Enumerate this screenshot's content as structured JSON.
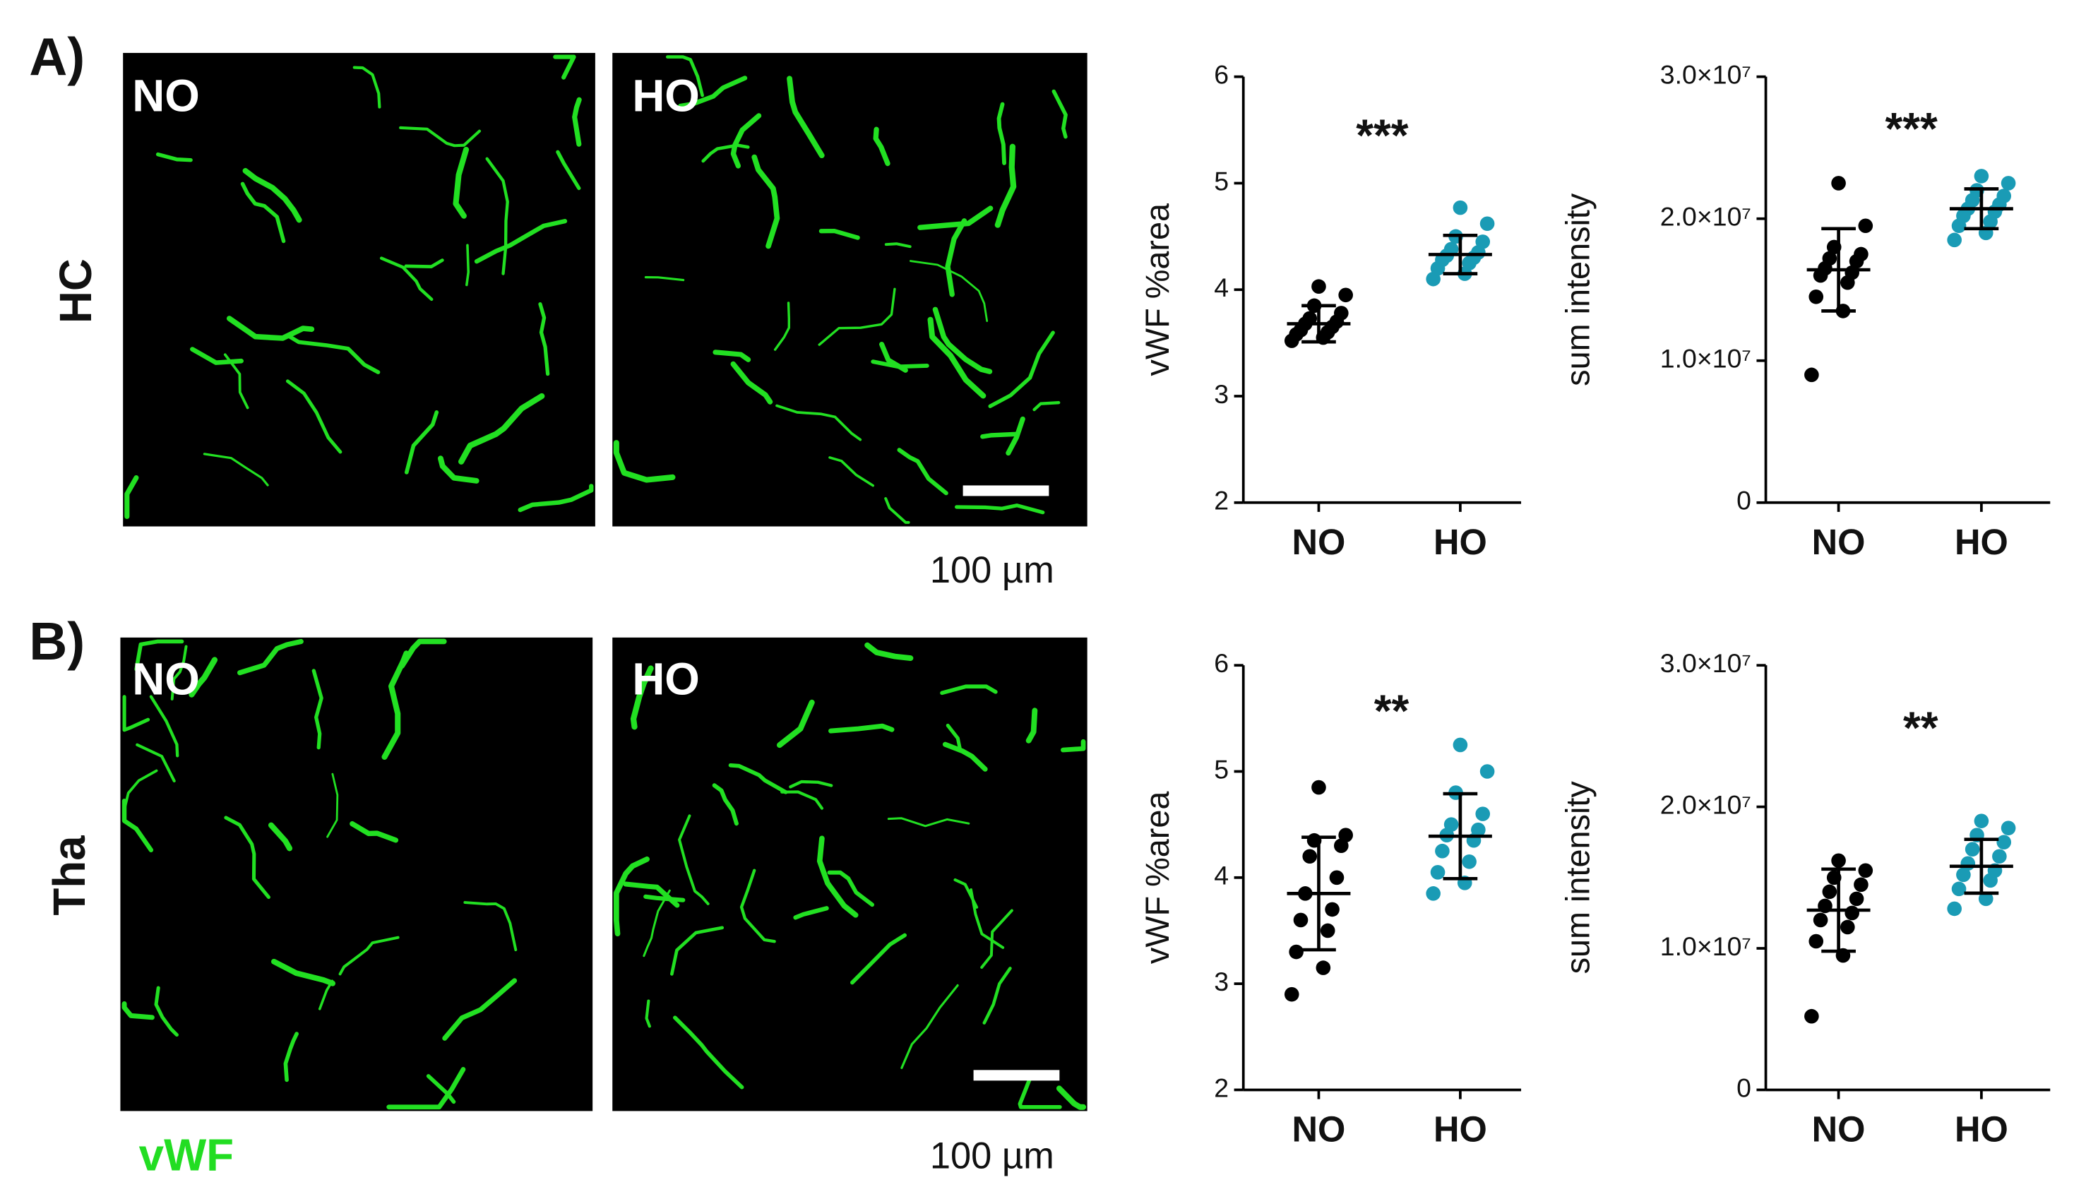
{
  "panels": [
    {
      "label": "A)",
      "region": "HC",
      "images": [
        "NO",
        "HO"
      ],
      "scale_bar": "100 µm"
    },
    {
      "label": "B)",
      "region": "Tha",
      "images": [
        "NO",
        "HO"
      ],
      "scale_bar": "100 µm"
    }
  ],
  "stain": "vWF",
  "chart_data": [
    {
      "type": "dot",
      "ylabel": "vWF %area",
      "annotation": "***",
      "categories": [
        "NO",
        "HO"
      ],
      "colors": [
        "#000000",
        "#1a9bb5"
      ],
      "values": [
        [
          3.52,
          3.55,
          3.58,
          3.6,
          3.62,
          3.65,
          3.68,
          3.7,
          3.73,
          3.78,
          3.85,
          3.95,
          4.03
        ],
        [
          4.1,
          4.15,
          4.2,
          4.25,
          4.28,
          4.3,
          4.32,
          4.35,
          4.38,
          4.45,
          4.5,
          4.62,
          4.77
        ]
      ],
      "means": [
        3.68,
        4.33
      ],
      "sds": [
        0.17,
        0.18
      ],
      "ylim": [
        2,
        6
      ],
      "yticks": [
        2,
        3,
        4,
        5,
        6
      ]
    },
    {
      "type": "dot",
      "ylabel": "sum intensity",
      "annotation": "***",
      "categories": [
        "NO",
        "HO"
      ],
      "colors": [
        "#000000",
        "#1a9bb5"
      ],
      "values": [
        [
          9000000,
          13500000,
          14500000,
          15500000,
          16000000,
          16200000,
          16500000,
          17000000,
          17200000,
          17500000,
          18000000,
          19500000,
          22500000
        ],
        [
          18500000,
          19000000,
          19500000,
          19800000,
          20200000,
          20500000,
          20700000,
          21000000,
          21300000,
          21600000,
          22000000,
          22500000,
          23000000
        ]
      ],
      "means": [
        16400000,
        20700000
      ],
      "sds": [
        2900000,
        1400000
      ],
      "ylim": [
        0,
        30000000
      ],
      "yticks": [
        0,
        {
          "value": 10000000,
          "label": "1.0×10⁷"
        },
        {
          "value": 20000000,
          "label": "2.0×10⁷"
        },
        {
          "value": 30000000,
          "label": "3.0×10⁷"
        }
      ]
    },
    {
      "type": "dot",
      "ylabel": "vWF %area",
      "annotation": "**",
      "categories": [
        "NO",
        "HO"
      ],
      "colors": [
        "#000000",
        "#1a9bb5"
      ],
      "values": [
        [
          2.9,
          3.15,
          3.3,
          3.5,
          3.6,
          3.7,
          3.85,
          4.0,
          4.2,
          4.3,
          4.35,
          4.4,
          4.85
        ],
        [
          3.85,
          3.95,
          4.05,
          4.15,
          4.25,
          4.35,
          4.4,
          4.45,
          4.5,
          4.6,
          4.8,
          5.0,
          5.25
        ]
      ],
      "means": [
        3.85,
        4.39
      ],
      "sds": [
        0.53,
        0.4
      ],
      "ylim": [
        2,
        6
      ],
      "yticks": [
        2,
        3,
        4,
        5,
        6
      ]
    },
    {
      "type": "dot",
      "ylabel": "sum intensity",
      "annotation": "**",
      "categories": [
        "NO",
        "HO"
      ],
      "colors": [
        "#000000",
        "#1a9bb5"
      ],
      "values": [
        [
          5200000,
          9500000,
          10500000,
          11500000,
          12000000,
          12500000,
          13000000,
          13500000,
          14000000,
          14500000,
          15000000,
          15500000,
          16200000
        ],
        [
          12800000,
          13500000,
          14200000,
          14800000,
          15200000,
          15500000,
          16000000,
          16500000,
          17000000,
          17500000,
          18000000,
          18500000,
          19000000
        ]
      ],
      "means": [
        12700000,
        15800000
      ],
      "sds": [
        2900000,
        1900000
      ],
      "ylim": [
        0,
        30000000
      ],
      "yticks": [
        0,
        {
          "value": 10000000,
          "label": "1.0×10⁷"
        },
        {
          "value": 20000000,
          "label": "2.0×10⁷"
        },
        {
          "value": 30000000,
          "label": "3.0×10⁷"
        }
      ]
    }
  ]
}
